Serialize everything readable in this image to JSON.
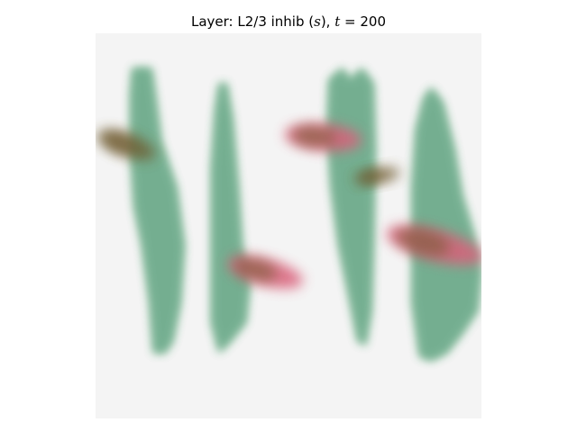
{
  "chart_data": {
    "type": "heatmap",
    "title": {
      "prefix": "Layer: L2/3 inhib (",
      "symbol": "s",
      "mid": "), ",
      "time_symbol": "t",
      "time_op": " = ",
      "time_value": "200"
    },
    "axes_visible": false,
    "background_color": "#f4f4f4",
    "colors": {
      "green_region": "#6aa88a",
      "green_region_edge": "#a9d2b3",
      "pink_blob": "#d9607a",
      "overlap_brown": "#6e5a2e"
    },
    "columns": [
      {
        "label": "column-1",
        "x_center": 0.12,
        "y_top": 0.09,
        "y_bottom": 0.83
      },
      {
        "label": "column-2",
        "x_center": 0.33,
        "y_top": 0.13,
        "y_bottom": 0.83
      },
      {
        "label": "column-3",
        "x_center": 0.66,
        "y_top": 0.09,
        "y_bottom": 0.81
      },
      {
        "label": "column-4",
        "x_center": 0.87,
        "y_top": 0.14,
        "y_bottom": 0.85
      }
    ],
    "active_blobs": [
      {
        "label": "blob-1",
        "x": 0.08,
        "y": 0.29,
        "rx": 0.08,
        "ry": 0.03,
        "angle": 20,
        "color": "overlap"
      },
      {
        "label": "blob-2",
        "x": 0.44,
        "y": 0.62,
        "rx": 0.1,
        "ry": 0.035,
        "angle": 15,
        "color": "pink"
      },
      {
        "label": "blob-3",
        "x": 0.59,
        "y": 0.27,
        "rx": 0.1,
        "ry": 0.035,
        "angle": 5,
        "color": "pink"
      },
      {
        "label": "blob-4",
        "x": 0.73,
        "y": 0.37,
        "rx": 0.06,
        "ry": 0.02,
        "angle": -10,
        "color": "overlap"
      },
      {
        "label": "blob-5",
        "x": 0.88,
        "y": 0.55,
        "rx": 0.13,
        "ry": 0.04,
        "angle": 15,
        "color": "pink"
      }
    ]
  }
}
